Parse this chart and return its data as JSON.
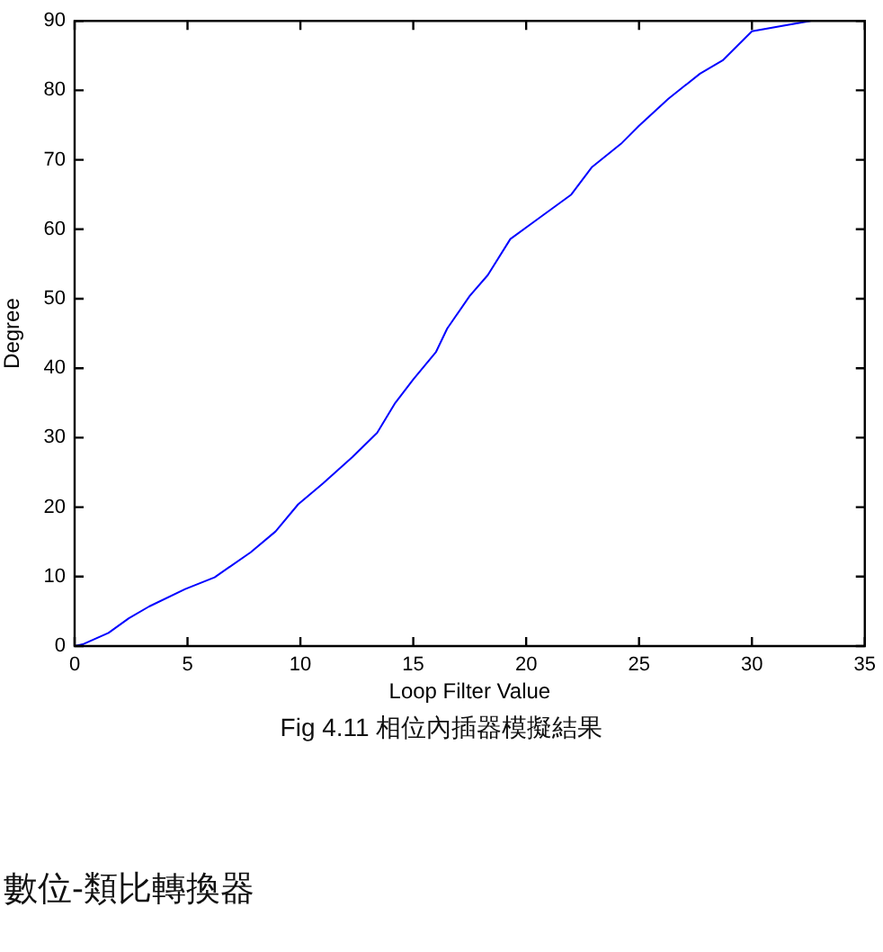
{
  "chart_data": {
    "type": "line",
    "xlabel": "Loop Filter Value",
    "ylabel": "Degree",
    "annotations": [
      "Fig 4.11 相位內插器模擬結果",
      "數位-類比轉換器"
    ],
    "x": [
      0,
      0.4,
      1.5,
      2.4,
      3.3,
      4.9,
      6.2,
      7.8,
      8.9,
      9.9,
      11.0,
      12.3,
      13.4,
      14.2,
      15.0,
      16.0,
      16.5,
      17.5,
      18.3,
      19.3,
      20.4,
      22.0,
      22.9,
      24.2,
      25.0,
      26.3,
      27.7,
      28.7,
      30.0,
      31.4,
      32.6
    ],
    "series": [
      {
        "color": "#0000ff",
        "values": [
          0,
          0.3,
          1.9,
          4.0,
          5.7,
          8.2,
          9.9,
          13.5,
          16.5,
          20.4,
          23.4,
          27.2,
          30.7,
          35.0,
          38.4,
          42.3,
          45.7,
          50.4,
          53.4,
          58.6,
          61.2,
          65.0,
          68.9,
          72.3,
          74.9,
          78.8,
          82.4,
          84.3,
          88.5,
          89.3,
          90
        ]
      }
    ],
    "xlim": [
      0,
      35
    ],
    "ylim": [
      0,
      90
    ],
    "xticks": [
      0,
      5,
      10,
      15,
      20,
      25,
      30,
      35
    ],
    "yticks": [
      0,
      10,
      20,
      30,
      40,
      50,
      60,
      70,
      80,
      90
    ]
  }
}
